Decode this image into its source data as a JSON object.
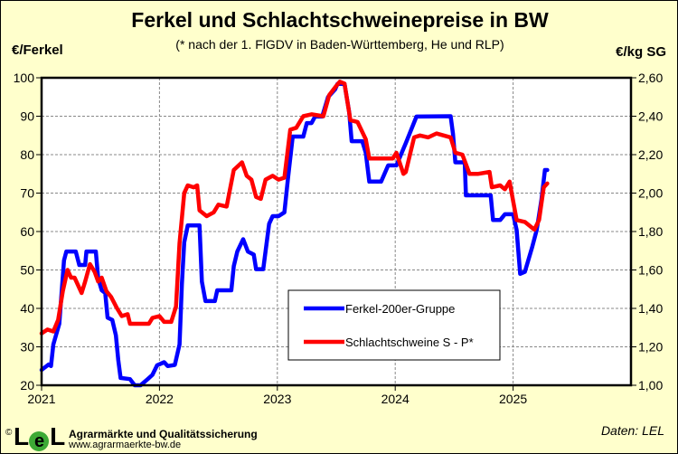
{
  "title": "Ferkel und Schlachtschweinepreise in BW",
  "subtitle": "(* nach der 1. FlGDV in Baden-Württemberg, He und RLP)",
  "footer": {
    "copyright": "©",
    "logo": "LEL",
    "organization": "Agrarmärkte und Qualitätssicherung",
    "url": "www.agrarmaerkte-bw.de",
    "source": "Daten: LEL"
  },
  "colors": {
    "background": "#FFFFCC",
    "ferkel": "#0000FF",
    "schlachtschweine": "#FF0000"
  },
  "chart_data": {
    "type": "line",
    "title": "Ferkel und Schlachtschweinepreise in BW",
    "ylabel": "€/Ferkel",
    "ylabel_right": "€/kg SG",
    "xlim": [
      2021,
      2026
    ],
    "ylim": [
      20,
      100
    ],
    "ylim_right": [
      1.0,
      2.6
    ],
    "grid": true,
    "legend_position": "bottom-center",
    "x_ticks": [
      "2021",
      "2022",
      "2023",
      "2024",
      "2025"
    ],
    "y_ticks": [
      "20",
      "30",
      "40",
      "50",
      "60",
      "70",
      "80",
      "90",
      "100"
    ],
    "y_ticks_right": [
      "1,00",
      "1,20",
      "1,40",
      "1,60",
      "1,80",
      "2,00",
      "2,20",
      "2,40",
      "2,60"
    ],
    "series": [
      {
        "name": "Ferkel-200er-Gruppe",
        "axis": "left",
        "color": "#0000FF",
        "points": [
          [
            2021.0,
            24
          ],
          [
            2021.06,
            25.4
          ],
          [
            2021.08,
            25
          ],
          [
            2021.1,
            30.6
          ],
          [
            2021.15,
            36
          ],
          [
            2021.19,
            52.5
          ],
          [
            2021.21,
            54.8
          ],
          [
            2021.29,
            54.8
          ],
          [
            2021.32,
            51.3
          ],
          [
            2021.37,
            51.3
          ],
          [
            2021.38,
            54.8
          ],
          [
            2021.46,
            54.8
          ],
          [
            2021.48,
            47.8
          ],
          [
            2021.51,
            44.7
          ],
          [
            2021.54,
            44
          ],
          [
            2021.56,
            37.6
          ],
          [
            2021.6,
            37
          ],
          [
            2021.63,
            33
          ],
          [
            2021.65,
            26.6
          ],
          [
            2021.67,
            21.9
          ],
          [
            2021.75,
            21.6
          ],
          [
            2021.79,
            20
          ],
          [
            2021.84,
            20
          ],
          [
            2021.9,
            21.6
          ],
          [
            2021.94,
            22.7
          ],
          [
            2021.98,
            25.2
          ],
          [
            2022.04,
            26
          ],
          [
            2022.07,
            25
          ],
          [
            2022.13,
            25.3
          ],
          [
            2022.17,
            30.6
          ],
          [
            2022.19,
            46.3
          ],
          [
            2022.21,
            57.2
          ],
          [
            2022.24,
            61.6
          ],
          [
            2022.34,
            61.6
          ],
          [
            2022.36,
            47
          ],
          [
            2022.39,
            41.9
          ],
          [
            2022.47,
            41.9
          ],
          [
            2022.49,
            44.7
          ],
          [
            2022.61,
            44.7
          ],
          [
            2022.63,
            51
          ],
          [
            2022.66,
            54.8
          ],
          [
            2022.71,
            58
          ],
          [
            2022.75,
            54.8
          ],
          [
            2022.8,
            54
          ],
          [
            2022.82,
            50.2
          ],
          [
            2022.88,
            50.2
          ],
          [
            2022.93,
            62
          ],
          [
            2022.96,
            64
          ],
          [
            2023.01,
            64
          ],
          [
            2023.06,
            65
          ],
          [
            2023.09,
            73.7
          ],
          [
            2023.13,
            84.7
          ],
          [
            2023.22,
            84.7
          ],
          [
            2023.25,
            88.2
          ],
          [
            2023.29,
            88.2
          ],
          [
            2023.32,
            89.9
          ],
          [
            2023.38,
            89.9
          ],
          [
            2023.43,
            95
          ],
          [
            2023.49,
            97
          ],
          [
            2023.51,
            98.4
          ],
          [
            2023.57,
            98.4
          ],
          [
            2023.61,
            91
          ],
          [
            2023.63,
            83.5
          ],
          [
            2023.72,
            83.5
          ],
          [
            2023.75,
            80.5
          ],
          [
            2023.78,
            73
          ],
          [
            2023.88,
            73
          ],
          [
            2023.94,
            77.2
          ],
          [
            2024.01,
            77.2
          ],
          [
            2024.09,
            83
          ],
          [
            2024.18,
            89.9
          ],
          [
            2024.47,
            90
          ],
          [
            2024.49,
            85.4
          ],
          [
            2024.51,
            78
          ],
          [
            2024.59,
            78
          ],
          [
            2024.6,
            69.4
          ],
          [
            2024.81,
            69.4
          ],
          [
            2024.83,
            63
          ],
          [
            2024.89,
            63
          ],
          [
            2024.93,
            64.5
          ],
          [
            2025.0,
            64.5
          ],
          [
            2025.03,
            60.4
          ],
          [
            2025.06,
            49
          ],
          [
            2025.1,
            49.5
          ],
          [
            2025.16,
            55.8
          ],
          [
            2025.2,
            60.4
          ],
          [
            2025.24,
            68.2
          ],
          [
            2025.27,
            76
          ],
          [
            2025.29,
            76
          ]
        ]
      },
      {
        "name": "Schlachtschweine S - P*",
        "axis": "right",
        "color": "#FF0000",
        "points": [
          [
            2021.0,
            1.27
          ],
          [
            2021.05,
            1.29
          ],
          [
            2021.1,
            1.28
          ],
          [
            2021.14,
            1.34
          ],
          [
            2021.18,
            1.49
          ],
          [
            2021.22,
            1.6
          ],
          [
            2021.25,
            1.56
          ],
          [
            2021.28,
            1.56
          ],
          [
            2021.34,
            1.48
          ],
          [
            2021.37,
            1.54
          ],
          [
            2021.41,
            1.63
          ],
          [
            2021.45,
            1.59
          ],
          [
            2021.48,
            1.54
          ],
          [
            2021.51,
            1.56
          ],
          [
            2021.55,
            1.49
          ],
          [
            2021.59,
            1.46
          ],
          [
            2021.64,
            1.4
          ],
          [
            2021.68,
            1.36
          ],
          [
            2021.73,
            1.37
          ],
          [
            2021.75,
            1.32
          ],
          [
            2021.83,
            1.32
          ],
          [
            2021.91,
            1.32
          ],
          [
            2021.94,
            1.35
          ],
          [
            2022.0,
            1.36
          ],
          [
            2022.04,
            1.33
          ],
          [
            2022.1,
            1.33
          ],
          [
            2022.14,
            1.41
          ],
          [
            2022.17,
            1.74
          ],
          [
            2022.21,
            2.0
          ],
          [
            2022.24,
            2.04
          ],
          [
            2022.29,
            2.03
          ],
          [
            2022.32,
            2.04
          ],
          [
            2022.34,
            1.91
          ],
          [
            2022.4,
            1.88
          ],
          [
            2022.46,
            1.9
          ],
          [
            2022.5,
            1.94
          ],
          [
            2022.57,
            1.93
          ],
          [
            2022.63,
            2.12
          ],
          [
            2022.7,
            2.16
          ],
          [
            2022.74,
            2.09
          ],
          [
            2022.78,
            2.07
          ],
          [
            2022.82,
            1.98
          ],
          [
            2022.86,
            1.97
          ],
          [
            2022.9,
            2.07
          ],
          [
            2022.96,
            2.09
          ],
          [
            2023.01,
            2.07
          ],
          [
            2023.06,
            2.08
          ],
          [
            2023.11,
            2.33
          ],
          [
            2023.16,
            2.34
          ],
          [
            2023.22,
            2.4
          ],
          [
            2023.29,
            2.41
          ],
          [
            2023.39,
            2.4
          ],
          [
            2023.44,
            2.51
          ],
          [
            2023.49,
            2.55
          ],
          [
            2023.53,
            2.58
          ],
          [
            2023.57,
            2.57
          ],
          [
            2023.62,
            2.38
          ],
          [
            2023.68,
            2.37
          ],
          [
            2023.75,
            2.28
          ],
          [
            2023.78,
            2.18
          ],
          [
            2023.9,
            2.18
          ],
          [
            2023.98,
            2.18
          ],
          [
            2024.01,
            2.21
          ],
          [
            2024.07,
            2.1
          ],
          [
            2024.09,
            2.11
          ],
          [
            2024.16,
            2.29
          ],
          [
            2024.21,
            2.3
          ],
          [
            2024.28,
            2.29
          ],
          [
            2024.35,
            2.31
          ],
          [
            2024.47,
            2.29
          ],
          [
            2024.51,
            2.21
          ],
          [
            2024.57,
            2.2
          ],
          [
            2024.63,
            2.1
          ],
          [
            2024.7,
            2.1
          ],
          [
            2024.8,
            2.11
          ],
          [
            2024.82,
            2.03
          ],
          [
            2024.89,
            2.04
          ],
          [
            2024.93,
            2.02
          ],
          [
            2024.97,
            2.06
          ],
          [
            2025.03,
            1.86
          ],
          [
            2025.1,
            1.85
          ],
          [
            2025.18,
            1.81
          ],
          [
            2025.22,
            1.86
          ],
          [
            2025.26,
            2.03
          ],
          [
            2025.29,
            2.05
          ]
        ]
      }
    ]
  }
}
